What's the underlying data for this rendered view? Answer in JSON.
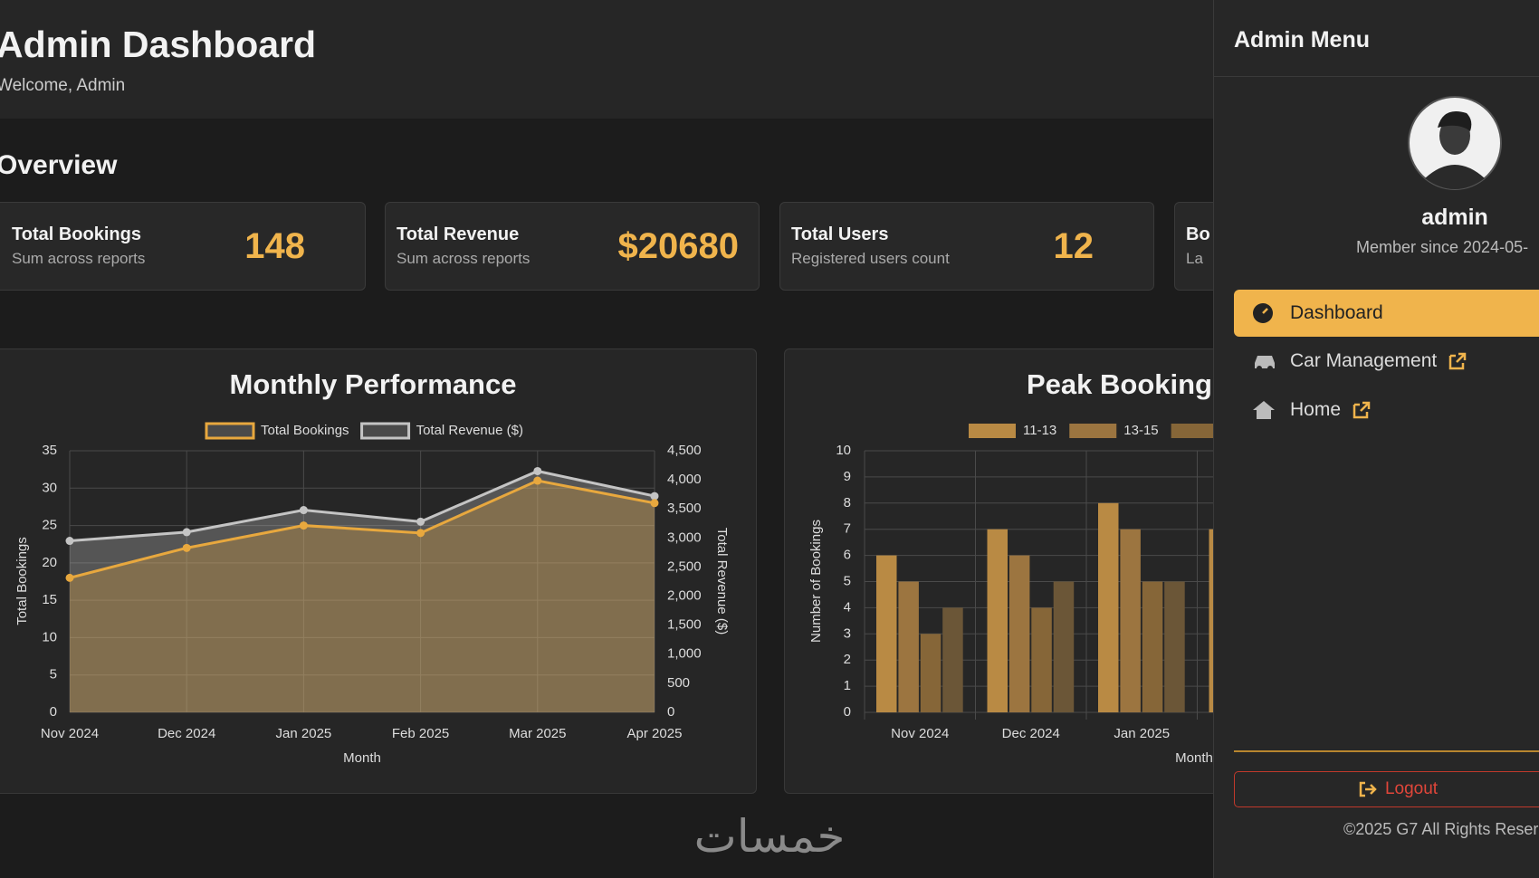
{
  "header": {
    "title": "Admin Dashboard",
    "subtitle": "Welcome, Admin"
  },
  "overview": {
    "title": "Overview",
    "cards": [
      {
        "title": "Total Bookings",
        "subtitle": "Sum across reports",
        "value": "148"
      },
      {
        "title": "Total Revenue",
        "subtitle": "Sum across reports",
        "value": "$20680"
      },
      {
        "title": "Total Users",
        "subtitle": "Registered users count",
        "value": "12"
      },
      {
        "title": "Bo",
        "subtitle": "La"
      }
    ]
  },
  "chart_data": [
    {
      "type": "line",
      "title": "Monthly Performance",
      "categories": [
        "Nov 2024",
        "Dec 2024",
        "Jan 2025",
        "Feb 2025",
        "Mar 2025",
        "Apr 2025"
      ],
      "series": [
        {
          "name": "Total Bookings",
          "color": "#e8a83e",
          "values": [
            18,
            22,
            25,
            24,
            31,
            28
          ]
        },
        {
          "name": "Total Revenue ($)",
          "color": "#c4c4c4",
          "axis": "y2",
          "values": [
            2950,
            3100,
            3480,
            3280,
            4150,
            3720
          ]
        }
      ],
      "ylim": [
        0,
        35
      ],
      "yticks": [
        0,
        5,
        10,
        15,
        20,
        25,
        30,
        35
      ],
      "y2lim": [
        0,
        4500
      ],
      "y2ticks": [
        0,
        500,
        {
          "value": 1000,
          "label": "1,000"
        },
        {
          "value": 1500,
          "label": "1,500"
        },
        {
          "value": 2000,
          "label": "2,000"
        },
        {
          "value": 2500,
          "label": "2,500"
        },
        {
          "value": 3000,
          "label": "3,000"
        },
        {
          "value": 3500,
          "label": "3,500"
        },
        {
          "value": 4000,
          "label": "4,000"
        },
        {
          "value": 4500,
          "label": "4,500"
        }
      ],
      "ylabel": "Total Bookings",
      "y2label": "Total Revenue ($)",
      "xlabel": "Month",
      "grid": true,
      "fill": true,
      "legend": "top"
    },
    {
      "type": "bar",
      "title": "Peak Booking",
      "categories": [
        "Nov 2024",
        "Dec 2024",
        "Jan 2025",
        null
      ],
      "series": [
        {
          "name": "11-13",
          "color": "#b98a44",
          "values": [
            6,
            7,
            8,
            7
          ]
        },
        {
          "name": "13-15",
          "color": "#9c7540",
          "values": [
            5,
            6,
            7,
            null
          ]
        },
        {
          "name": null,
          "color": "#866638",
          "values": [
            3,
            4,
            5,
            null
          ]
        },
        {
          "name": null,
          "color": "#6b5637",
          "values": [
            4,
            5,
            5,
            null
          ]
        }
      ],
      "ylim": [
        0,
        10
      ],
      "yticks": [
        0,
        1,
        2,
        3,
        4,
        5,
        6,
        7,
        8,
        9,
        10
      ],
      "ylabel": "Number of Bookings",
      "xlabel": "Month",
      "grid": true,
      "legend": "top"
    }
  ],
  "sidebar": {
    "title": "Admin Menu",
    "user": "admin",
    "member": "Member since 2024-05-",
    "menu": [
      "Dashboard",
      "Car Management",
      "Home"
    ],
    "logout": "Logout",
    "copyright": "©2025 G7 All Rights Reser"
  },
  "watermark": "خمسات"
}
